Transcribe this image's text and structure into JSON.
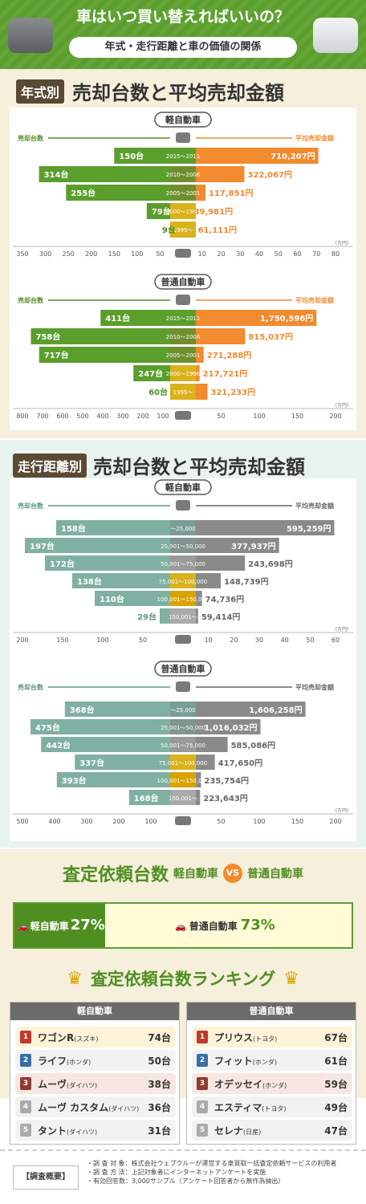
{
  "header": {
    "title": "車はいつ買い替えればいいの？",
    "subtitle": "年式・走行距離と車の価値の関係"
  },
  "section_year": {
    "tag": "年式別",
    "title": "売却台数と平均売却金額"
  },
  "section_mileage": {
    "tag": "走行距離別",
    "title": "売却台数と平均売却金額"
  },
  "axis_words": {
    "left": "売却台数",
    "right": "平均売却金額",
    "unit": "（万円）",
    "km": "k m"
  },
  "chart_data": [
    {
      "type": "bar",
      "title": "軽自動車",
      "group": "year",
      "categories": [
        "2015～2011",
        "2010～2006",
        "2005～2001",
        "2000～1996",
        "1995～"
      ],
      "series": [
        {
          "name": "売却台数",
          "values": [
            150,
            314,
            255,
            79,
            9
          ],
          "unit": "台"
        },
        {
          "name": "平均売却金額",
          "values": [
            710207,
            322067,
            117851,
            39981,
            61111
          ],
          "unit": "円"
        }
      ],
      "labels_left": [
        "150台",
        "314台",
        "255台",
        "79台",
        "9台"
      ],
      "labels_right": [
        "710,207円",
        "322,067円",
        "117,851円",
        "39,981円",
        "61,111円"
      ],
      "left_ticks": [
        "350",
        "300",
        "250",
        "200",
        "150",
        "100",
        "50"
      ],
      "right_ticks": [
        "10",
        "20",
        "30",
        "40",
        "50",
        "60",
        "70",
        "80"
      ],
      "left_max": 350,
      "right_max": 80
    },
    {
      "type": "bar",
      "title": "普通自動車",
      "group": "year",
      "categories": [
        "2015～2011",
        "2010～2006",
        "2005～2001",
        "2000～1996",
        "1995～"
      ],
      "series": [
        {
          "name": "売却台数",
          "values": [
            411,
            758,
            717,
            247,
            60
          ],
          "unit": "台"
        },
        {
          "name": "平均売却金額",
          "values": [
            1750596,
            815037,
            271288,
            217721,
            321233
          ],
          "unit": "円"
        }
      ],
      "labels_left": [
        "411台",
        "758台",
        "717台",
        "247台",
        "60台"
      ],
      "labels_right": [
        "1,750,596円",
        "815,037円",
        "271,288円",
        "217,721円",
        "321,233円"
      ],
      "left_ticks": [
        "800",
        "700",
        "600",
        "500",
        "400",
        "300",
        "200",
        "100"
      ],
      "right_ticks": [
        "50",
        "100",
        "150",
        "200"
      ],
      "left_max": 800,
      "right_max": 200
    },
    {
      "type": "bar",
      "title": "軽自動車",
      "group": "mileage",
      "categories": [
        "～25,000",
        "25,001～50,000",
        "50,001～75,000",
        "75,001～100,000",
        "100,001～150,000",
        "150,001～"
      ],
      "series": [
        {
          "name": "売却台数",
          "values": [
            158,
            197,
            172,
            138,
            110,
            29
          ],
          "unit": "台"
        },
        {
          "name": "平均売却金額",
          "values": [
            595259,
            377937,
            243698,
            148739,
            74736,
            59414
          ],
          "unit": "円"
        }
      ],
      "labels_left": [
        "158台",
        "197台",
        "172台",
        "138台",
        "110台",
        "29台"
      ],
      "labels_right": [
        "595,259円",
        "377,937円",
        "243,698円",
        "148,739円",
        "74,736円",
        "59,414円"
      ],
      "left_ticks": [
        "200",
        "150",
        "100",
        "50"
      ],
      "right_ticks": [
        "10",
        "20",
        "30",
        "40",
        "50",
        "60"
      ],
      "left_max": 200,
      "right_max": 60
    },
    {
      "type": "bar",
      "title": "普通自動車",
      "group": "mileage",
      "categories": [
        "～25,000",
        "25,001～50,000",
        "50,001～75,000",
        "75,001～100,000",
        "100,001～150,000",
        "150,001～"
      ],
      "series": [
        {
          "name": "売却台数",
          "values": [
            368,
            475,
            442,
            337,
            393,
            168
          ],
          "unit": "台"
        },
        {
          "name": "平均売却金額",
          "values": [
            1606258,
            1016032,
            585086,
            417650,
            235754,
            223643
          ],
          "unit": "円"
        }
      ],
      "labels_left": [
        "368台",
        "475台",
        "442台",
        "337台",
        "393台",
        "168台"
      ],
      "labels_right": [
        "1,606,258円",
        "1,016,032円",
        "585,086円",
        "417,650円",
        "235,754円",
        "223,643円"
      ],
      "left_ticks": [
        "500",
        "400",
        "300",
        "200",
        "100"
      ],
      "right_ticks": [
        "50",
        "100",
        "150",
        "200"
      ],
      "left_max": 500,
      "right_max": 200
    }
  ],
  "ratio": {
    "title": "査定依頼台数",
    "left_label": "軽自動車",
    "vs": "VS",
    "right_label": "普通自動車",
    "kei_label": "軽自動車",
    "kei_pct": "27%",
    "kei_value": 27,
    "futsu_label": "普通自動車",
    "futsu_pct": "73%",
    "futsu_value": 73
  },
  "ranking": {
    "title": "査定依頼台数ランキング",
    "kei": {
      "head": "軽自動車",
      "rows": [
        {
          "rank": "1",
          "name": "ワゴンR",
          "maker": "(スズキ)",
          "count": "74台"
        },
        {
          "rank": "2",
          "name": "ライフ",
          "maker": "(ホンダ)",
          "count": "50台"
        },
        {
          "rank": "3",
          "name": "ムーヴ",
          "maker": "(ダイハツ)",
          "count": "38台"
        },
        {
          "rank": "4",
          "name": "ムーヴ カスタム",
          "maker": "(ダイハツ)",
          "count": "36台"
        },
        {
          "rank": "5",
          "name": "タント",
          "maker": "(ダイハツ)",
          "count": "31台"
        }
      ]
    },
    "futsu": {
      "head": "普通自動車",
      "rows": [
        {
          "rank": "1",
          "name": "プリウス",
          "maker": "(トヨタ)",
          "count": "67台"
        },
        {
          "rank": "2",
          "name": "フィット",
          "maker": "(ホンダ)",
          "count": "61台"
        },
        {
          "rank": "3",
          "name": "オデッセイ",
          "maker": "(ホンダ)",
          "count": "59台"
        },
        {
          "rank": "4",
          "name": "エスティマ",
          "maker": "(トヨタ)",
          "count": "49台"
        },
        {
          "rank": "5",
          "name": "セレナ",
          "maker": "(日産)",
          "count": "47台"
        }
      ]
    }
  },
  "footer": {
    "label": "【調査概要】",
    "lines": [
      "・調 査 対 象：株式会社ウェブクルーが運営する車買取一括査定依頼サービスの利用者",
      "・調 査 方 法：上記対象者にインターネットアンケートを実施",
      "・有効回答数：3,000サンプル（アンケート回答者から無作為抽出）"
    ]
  },
  "colors": {
    "green": "#5a9e2c",
    "orange": "#f28a2e",
    "teal": "#7fb0a2",
    "gray": "#8a8a8a",
    "yellow": "#d9b21c"
  }
}
